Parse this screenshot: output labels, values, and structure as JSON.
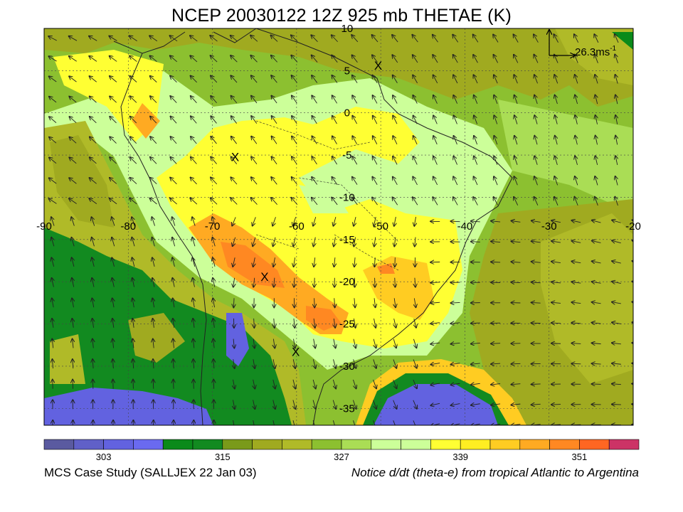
{
  "title": "NCEP 20030122 12Z 925 mb THETAE (K)",
  "vector_reference": {
    "label": "26.3ms",
    "exponent": "-1"
  },
  "map": {
    "lon_ticks": [
      "-90",
      "-80",
      "-70",
      "-60",
      "-50",
      "-40",
      "-30",
      "-20"
    ],
    "lat_ticks": [
      "10",
      "5",
      "0",
      "-5",
      "-10",
      "-15",
      "-20",
      "-25",
      "-30",
      "-35"
    ],
    "markers": [
      "X",
      "X",
      "X",
      "X"
    ],
    "grid": true
  },
  "colorbar": {
    "colors": [
      "#5a5aa0",
      "#6060c8",
      "#6262e0",
      "#6a6af0",
      "#0a8a1a",
      "#128a20",
      "#7a9a1a",
      "#a0aa20",
      "#b0ba28",
      "#8cc030",
      "#aadd55",
      "#ccff99",
      "#ccff99",
      "#ffff33",
      "#ffee22",
      "#ffcc22",
      "#ffaa22",
      "#ff8822",
      "#ff6622",
      "#cc3366"
    ],
    "labels": [
      "303",
      "315",
      "327",
      "339",
      "351"
    ]
  },
  "footer": {
    "left": "MCS Case Study (SALLJEX 22 Jan 03)",
    "right": "Notice d/dt (theta-e) from tropical Atlantic to Argentina"
  }
}
